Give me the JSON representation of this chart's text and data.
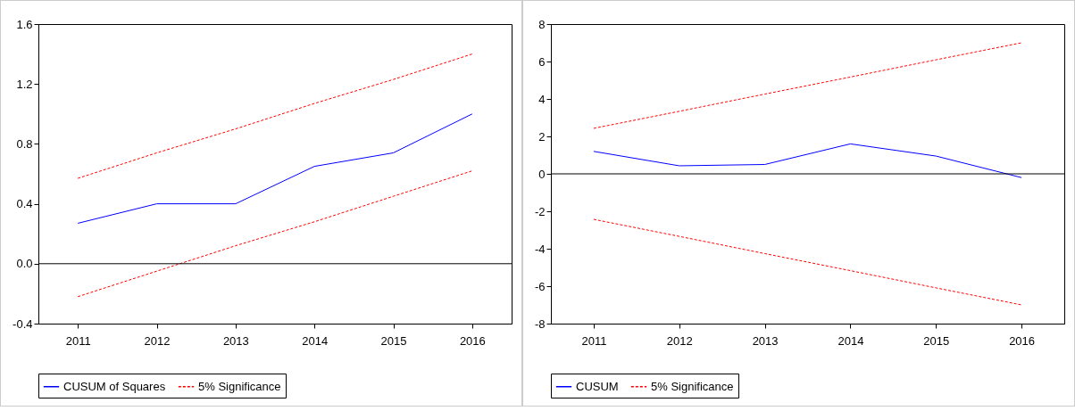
{
  "chart_data": [
    {
      "type": "line",
      "categories": [
        "2011",
        "2012",
        "2013",
        "2014",
        "2015",
        "2016"
      ],
      "ylim": [
        -0.4,
        1.6
      ],
      "yticks": [
        -0.4,
        {
          "value": 0,
          "label": "0.0"
        },
        0.4,
        0.8,
        1.2,
        1.6
      ],
      "grid": false,
      "legend": "bottom",
      "ref_lines": [
        {
          "axis": "y",
          "value": 0,
          "color": "#000000"
        }
      ],
      "series": [
        {
          "name": "CUSUM of Squares",
          "color": "#0000ff",
          "line_style": "solid",
          "values": [
            0.27,
            0.4,
            0.4,
            0.65,
            0.74,
            1.0
          ]
        },
        {
          "name": "5% Significance",
          "color": "#ff0000",
          "line_style": "dashed",
          "values": [
            0.57,
            0.74,
            0.9,
            1.07,
            1.23,
            1.4
          ]
        },
        {
          "color": "#ff0000",
          "line_style": "dashed",
          "values": [
            -0.22,
            -0.05,
            0.12,
            0.28,
            0.45,
            0.62
          ]
        }
      ]
    },
    {
      "type": "line",
      "categories": [
        "2011",
        "2012",
        "2013",
        "2014",
        "2015",
        "2016"
      ],
      "ylim": [
        -8,
        8
      ],
      "yticks": [
        -8,
        -6,
        -4,
        -2,
        0,
        2,
        4,
        6,
        8
      ],
      "grid": false,
      "legend": "bottom",
      "ref_lines": [
        {
          "axis": "y",
          "value": 0,
          "color": "#000000"
        }
      ],
      "series": [
        {
          "name": "CUSUM",
          "color": "#0000ff",
          "line_style": "solid",
          "values": [
            1.2,
            0.43,
            0.5,
            1.6,
            0.95,
            -0.2
          ]
        },
        {
          "name": "5% Significance",
          "color": "#ff0000",
          "line_style": "dashed",
          "values": [
            2.43,
            3.34,
            4.26,
            5.17,
            6.09,
            7.0
          ]
        },
        {
          "color": "#ff0000",
          "line_style": "dashed",
          "values": [
            -2.43,
            -3.34,
            -4.26,
            -5.17,
            -6.09,
            -7.0
          ]
        }
      ]
    }
  ]
}
